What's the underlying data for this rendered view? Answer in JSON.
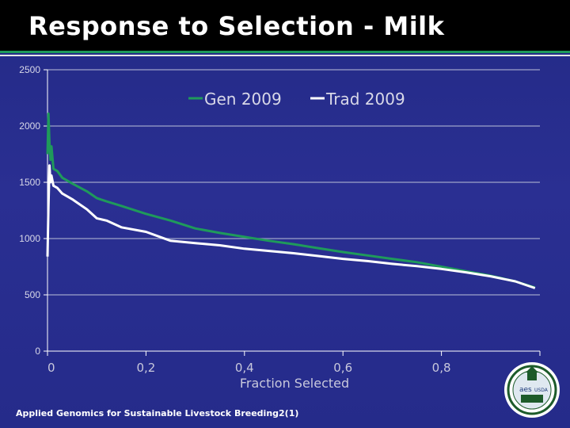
{
  "slide": {
    "title": "Response to Selection - Milk",
    "footer": "Applied Genomics for Sustainable Livestock Breeding",
    "footer_page": "2(1)"
  },
  "colors": {
    "gen": "#1f9a5b",
    "trad": "#ffffff",
    "grid": "#8a8fc0",
    "background": "#2a2f92"
  },
  "logo": {
    "icon": "university-seal-icon",
    "text_a": "aes",
    "text_b": "USDA"
  },
  "chart_data": {
    "type": "line",
    "title": "",
    "xlabel": "Fraction Selected",
    "ylabel": "",
    "xlim": [
      0,
      1
    ],
    "ylim": [
      0,
      2500
    ],
    "y_ticks": [
      0,
      500,
      1000,
      1500,
      2000,
      2500
    ],
    "y_tick_labels": [
      "0",
      "500",
      "1000",
      "1500",
      "2000",
      "2500"
    ],
    "x_ticks": [
      0,
      0.2,
      0.4,
      0.6,
      0.8
    ],
    "x_tick_labels": [
      "0",
      "0,2",
      "0,4",
      "0,6",
      "0,8"
    ],
    "grid": true,
    "legend": "top-center",
    "series": [
      {
        "name": "Gen 2009",
        "x": [
          0.0,
          0.002,
          0.004,
          0.006,
          0.008,
          0.012,
          0.02,
          0.03,
          0.05,
          0.08,
          0.1,
          0.12,
          0.15,
          0.2,
          0.25,
          0.3,
          0.35,
          0.4,
          0.45,
          0.5,
          0.55,
          0.6,
          0.65,
          0.7,
          0.75,
          0.8,
          0.85,
          0.9,
          0.95,
          0.99
        ],
        "y": [
          1750,
          2110,
          1850,
          1700,
          1820,
          1620,
          1600,
          1540,
          1490,
          1420,
          1360,
          1330,
          1290,
          1220,
          1160,
          1090,
          1050,
          1015,
          980,
          950,
          915,
          880,
          850,
          820,
          790,
          750,
          710,
          670,
          620,
          565
        ]
      },
      {
        "name": "Trad 2009",
        "x": [
          0.0,
          0.002,
          0.004,
          0.006,
          0.008,
          0.012,
          0.02,
          0.03,
          0.05,
          0.08,
          0.1,
          0.12,
          0.15,
          0.2,
          0.25,
          0.3,
          0.35,
          0.4,
          0.45,
          0.5,
          0.55,
          0.6,
          0.65,
          0.7,
          0.75,
          0.8,
          0.85,
          0.9,
          0.95,
          0.99
        ],
        "y": [
          840,
          1280,
          1650,
          1500,
          1560,
          1470,
          1450,
          1400,
          1350,
          1260,
          1180,
          1160,
          1100,
          1060,
          980,
          960,
          940,
          910,
          890,
          870,
          845,
          820,
          800,
          775,
          755,
          730,
          700,
          665,
          620,
          560
        ]
      }
    ]
  }
}
